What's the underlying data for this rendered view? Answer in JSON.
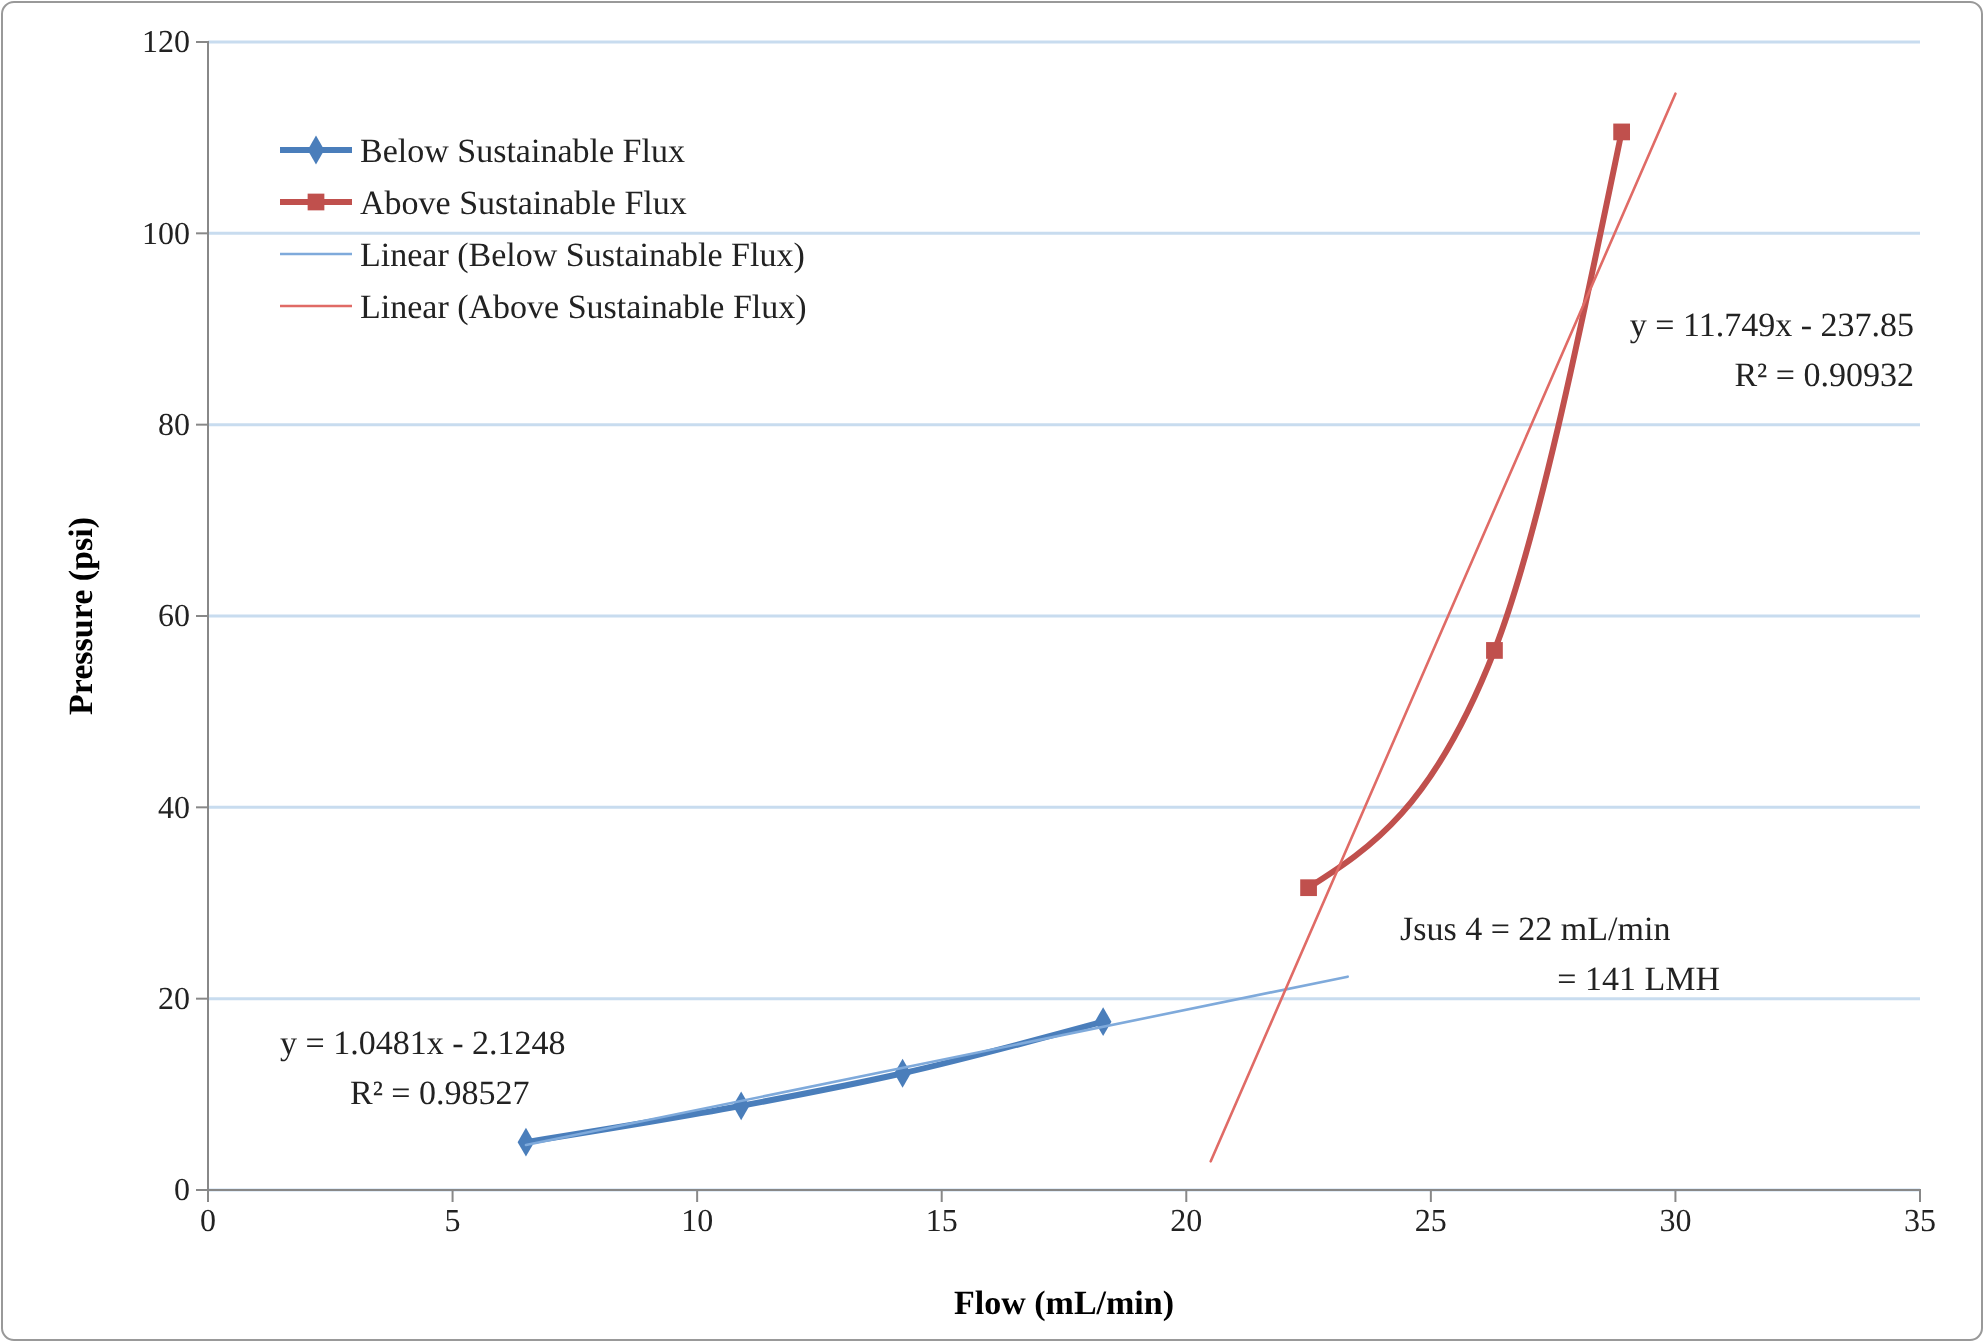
{
  "chart_data": {
    "type": "line",
    "xlabel": "Flow (mL/min)",
    "ylabel": "Pressure (psi)",
    "xlim": [
      0,
      35
    ],
    "xticks": [
      0,
      5,
      10,
      15,
      20,
      25,
      30,
      35
    ],
    "ylim": [
      0,
      120
    ],
    "yticks": [
      0,
      20,
      40,
      60,
      80,
      100,
      120
    ],
    "grid": "y",
    "legend": "top left",
    "series": [
      {
        "name": "Below Sustainable Flux",
        "color": "#4a7ebb",
        "marker": "diamond",
        "x": [
          6.5,
          10.9,
          14.2,
          18.3
        ],
        "values": [
          5,
          8.8,
          12.2,
          17.6
        ]
      },
      {
        "name": "Above Sustainable Flux",
        "color": "#c0504d",
        "marker": "square",
        "x": [
          22.5,
          26.3,
          28.9
        ],
        "values": [
          31.6,
          56.4,
          110.6
        ]
      },
      {
        "name": "Linear (Below Sustainable Flux)",
        "color": "#7faadb",
        "marker": "none",
        "x": [
          6.5,
          23.3
        ],
        "values": [
          4.7,
          22.3
        ]
      },
      {
        "name": "Linear (Above Sustainable Flux)",
        "color": "#e06b66",
        "marker": "none",
        "x": [
          20.5,
          30
        ],
        "values": [
          3,
          114.6
        ]
      }
    ],
    "annotations": [
      "y = 11.749x - 237.85",
      "R² = 0.90932",
      "Jsus 4 = 22 mL/min",
      "= 141 LMH",
      "y = 1.0481x - 2.1248",
      "R² = 0.98527"
    ]
  }
}
